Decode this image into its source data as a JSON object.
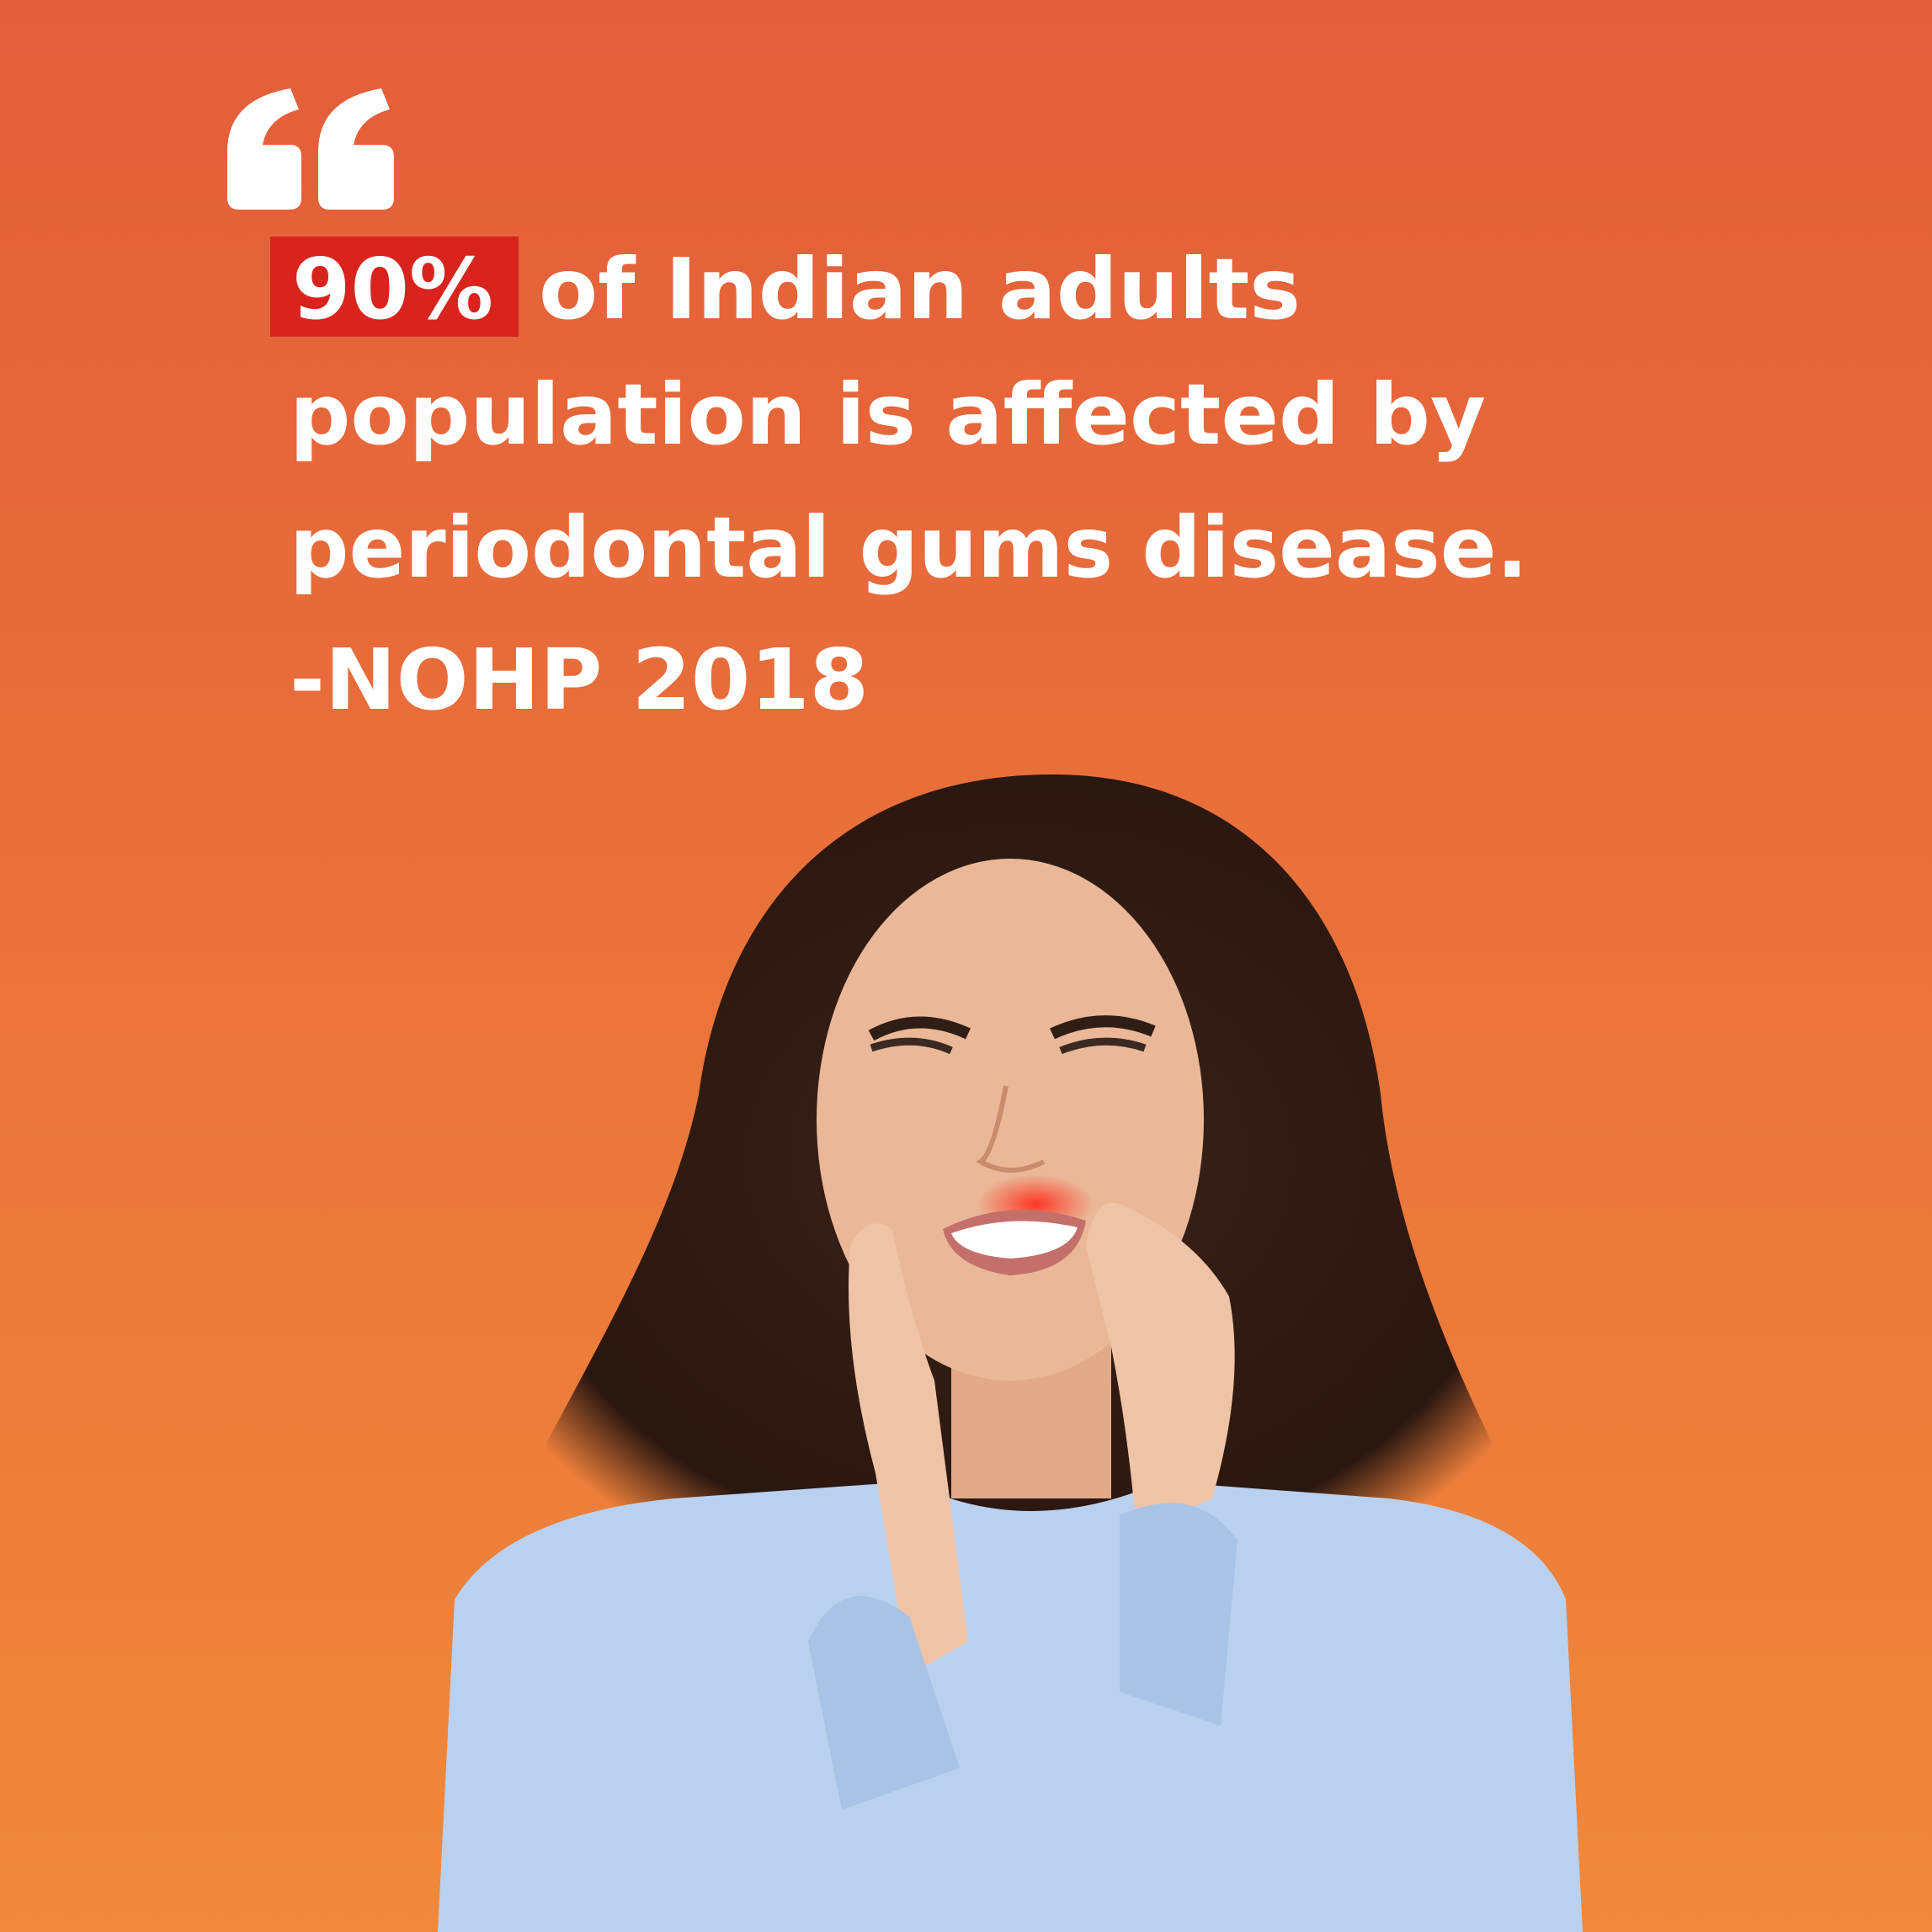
{
  "quote": {
    "highlight": "90%",
    "lines": [
      "of Indian adults",
      "population is affected by",
      "periodontal gums disease."
    ],
    "attribution": "-NOHP 2018"
  }
}
